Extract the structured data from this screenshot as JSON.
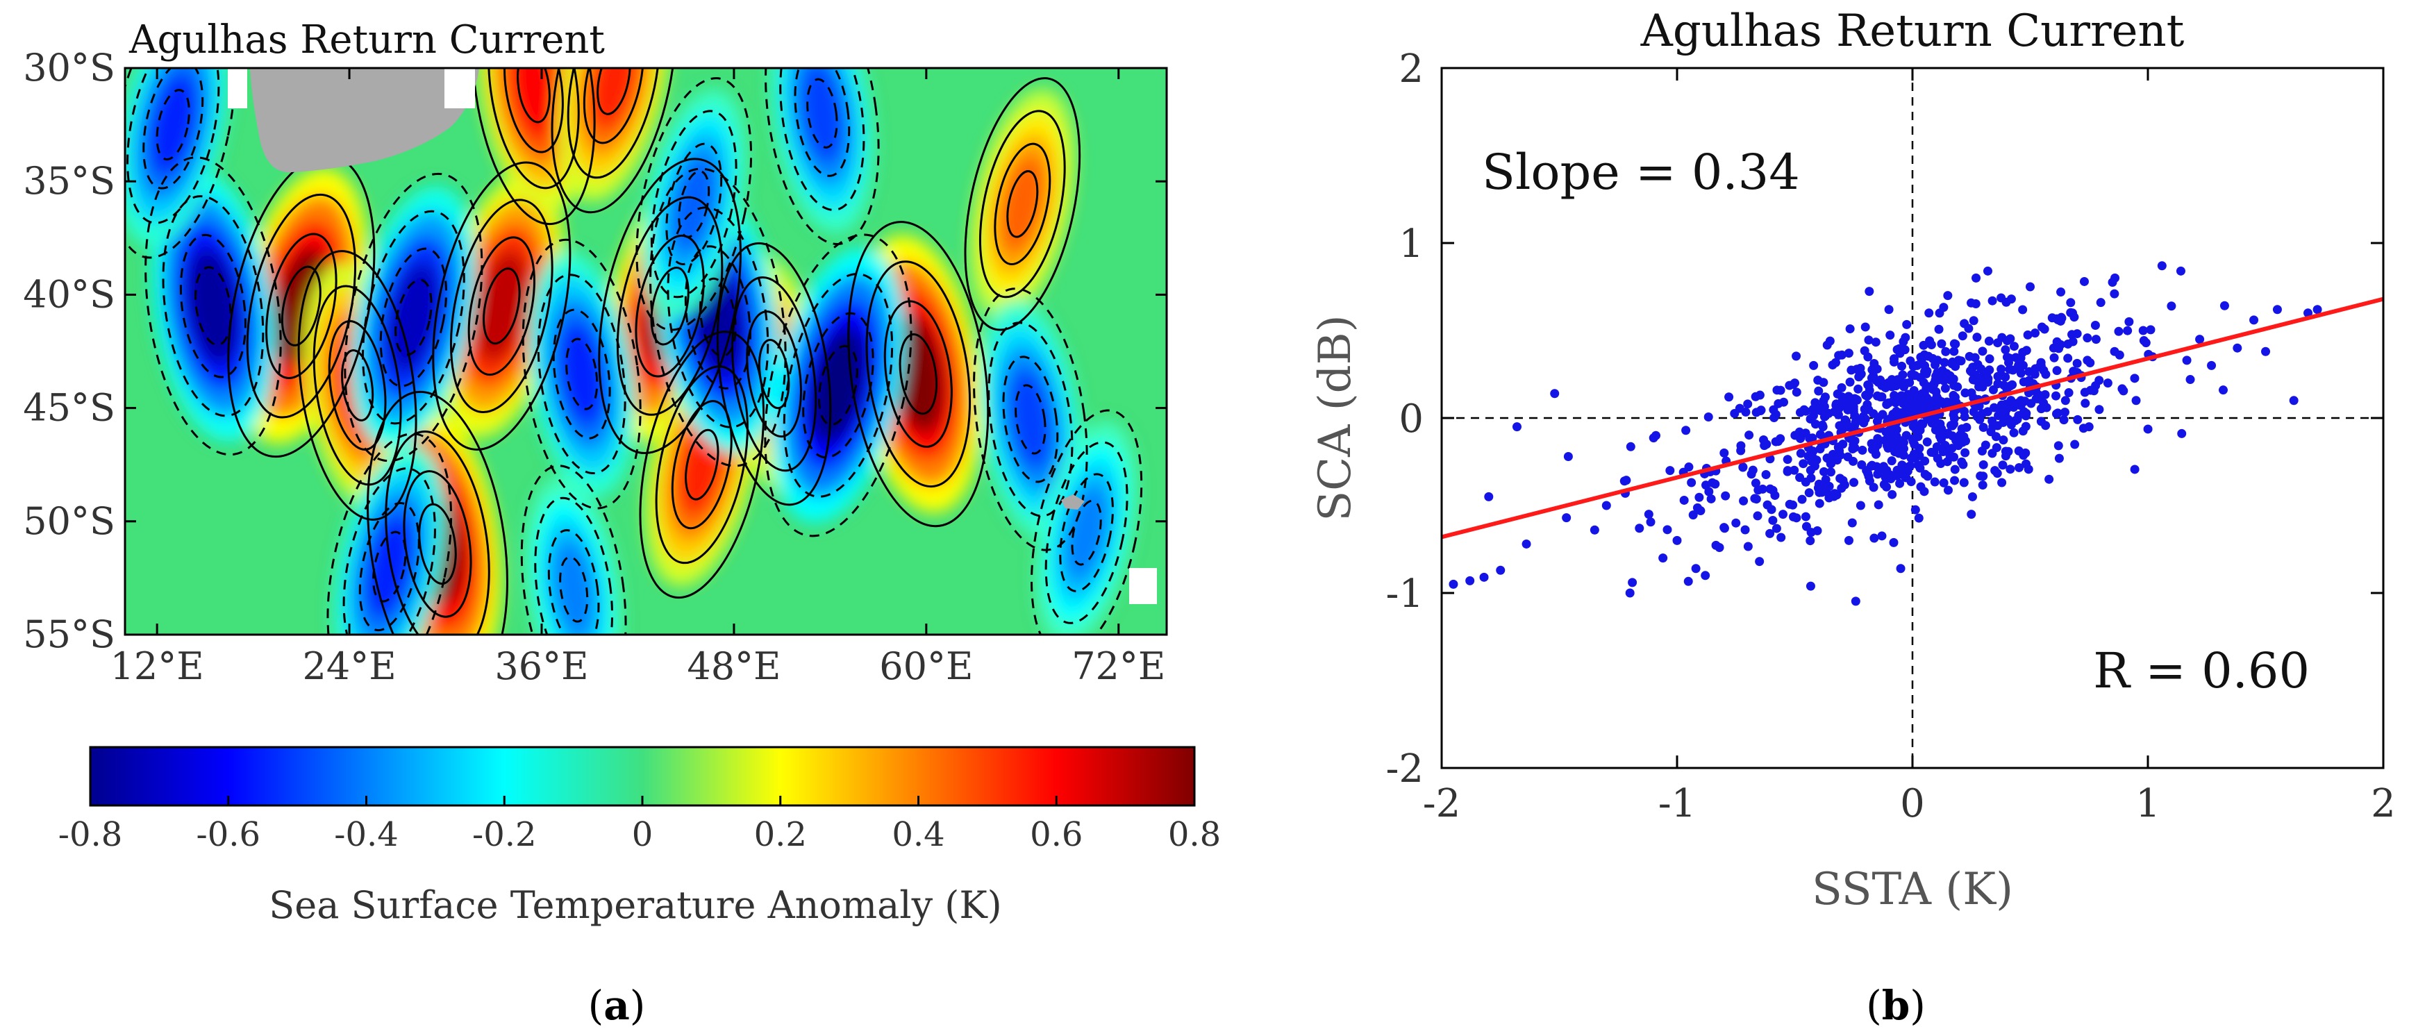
{
  "figure": {
    "panel_a_caption": "a",
    "panel_b_caption": "b"
  },
  "colors": {
    "scatter_points": "#1414e6",
    "fit_line": "#ff1a1a",
    "land": "#aaaaaa",
    "contour": "#000000"
  },
  "chart_data": [
    {
      "type": "heatmap",
      "title": "Agulhas Return Current",
      "xlabel": "",
      "ylabel": "",
      "x_ticks": [
        "12°E",
        "24°E",
        "36°E",
        "48°E",
        "60°E",
        "72°E"
      ],
      "y_ticks": [
        "30°S",
        "35°S",
        "40°S",
        "45°S",
        "50°S",
        "55°S"
      ],
      "xlim": [
        10,
        75
      ],
      "ylim": [
        -55,
        -30
      ],
      "colorbar": {
        "label": "Sea Surface Temperature Anomaly (K)",
        "range": [
          -0.8,
          0.8
        ],
        "ticks": [
          "-0.8",
          "-0.6",
          "-0.4",
          "-0.2",
          "0",
          "0.2",
          "0.4",
          "0.6",
          "0.8"
        ],
        "colormap": "jet"
      },
      "overlay": "SCA contours (solid = positive, dashed = negative)",
      "anomaly_features": [
        {
          "lon": 21,
          "lat": -40.5,
          "value": 0.8
        },
        {
          "lon": 24.5,
          "lat": -44,
          "value": 0.55
        },
        {
          "lon": 33.5,
          "lat": -40.5,
          "value": 0.7
        },
        {
          "lon": 29.5,
          "lat": -51,
          "value": 0.8
        },
        {
          "lon": 44,
          "lat": -40.5,
          "value": 0.75
        },
        {
          "lon": 59.5,
          "lat": -43.5,
          "value": 0.8
        },
        {
          "lon": 46,
          "lat": -47.5,
          "value": 0.55
        },
        {
          "lon": 50.5,
          "lat": -43.5,
          "value": 0.5
        },
        {
          "lon": 66,
          "lat": -36,
          "value": 0.45
        },
        {
          "lon": 35.5,
          "lat": -30.8,
          "value": 0.6
        },
        {
          "lon": 40.5,
          "lat": -30.5,
          "value": 0.55
        },
        {
          "lon": 15.5,
          "lat": -40.5,
          "value": -0.75
        },
        {
          "lon": 28,
          "lat": -41,
          "value": -0.7
        },
        {
          "lon": 47,
          "lat": -41,
          "value": -0.75
        },
        {
          "lon": 54.5,
          "lat": -44,
          "value": -0.8
        },
        {
          "lon": 38.5,
          "lat": -43.5,
          "value": -0.55
        },
        {
          "lon": 26.5,
          "lat": -52,
          "value": -0.55
        },
        {
          "lon": 66.5,
          "lat": -45.5,
          "value": -0.5
        },
        {
          "lon": 13,
          "lat": -32.5,
          "value": -0.55
        },
        {
          "lon": 53.5,
          "lat": -32,
          "value": -0.5
        },
        {
          "lon": 45.5,
          "lat": -36,
          "value": -0.45
        },
        {
          "lon": 38,
          "lat": -53,
          "value": -0.4
        },
        {
          "lon": 70,
          "lat": -50.5,
          "value": -0.4
        }
      ]
    },
    {
      "type": "scatter",
      "title": "Agulhas Return Current",
      "xlabel": "SSTA (K)",
      "ylabel": "SCA (dB)",
      "xlim": [
        -2,
        2
      ],
      "ylim": [
        -2,
        2
      ],
      "x_ticks": [
        "-2",
        "-1",
        "0",
        "1",
        "2"
      ],
      "y_ticks": [
        "2",
        "1",
        "0",
        "-1",
        "-2"
      ],
      "annotations": {
        "slope": "Slope = 0.34",
        "r": "R = 0.60"
      },
      "fit_line": {
        "slope": 0.34,
        "intercept": 0.0
      },
      "n_points": 900,
      "series": [
        {
          "name": "samples",
          "points": [
            [
              -1.95,
              -0.95
            ],
            [
              -1.88,
              -0.93
            ],
            [
              -1.82,
              -0.91
            ],
            [
              -1.8,
              -0.45
            ],
            [
              -1.75,
              -0.87
            ],
            [
              -1.68,
              -0.05
            ],
            [
              -1.64,
              -0.72
            ],
            [
              -1.52,
              0.14
            ],
            [
              -1.47,
              -0.57
            ],
            [
              -1.35,
              -0.64
            ],
            [
              -1.3,
              -0.5
            ],
            [
              -1.22,
              -0.43
            ],
            [
              -1.2,
              -1.0
            ],
            [
              -1.19,
              -0.94
            ],
            [
              -1.16,
              -0.63
            ],
            [
              -1.12,
              -0.55
            ],
            [
              -1.09,
              -0.1
            ],
            [
              -1.06,
              -0.8
            ],
            [
              -1.03,
              -0.3
            ],
            [
              -1.0,
              -0.7
            ],
            [
              -0.97,
              -0.47
            ],
            [
              -0.95,
              -0.28
            ],
            [
              -0.92,
              -0.86
            ],
            [
              -0.9,
              -0.53
            ],
            [
              -0.88,
              -0.9
            ],
            [
              -0.85,
              -0.37
            ],
            [
              -0.82,
              -0.74
            ],
            [
              -0.8,
              -0.2
            ],
            [
              -0.78,
              0.12
            ],
            [
              -0.75,
              -0.6
            ],
            [
              -0.72,
              -0.28
            ],
            [
              -0.7,
              0.08
            ],
            [
              -0.67,
              -0.46
            ],
            [
              -0.65,
              -0.82
            ],
            [
              -0.62,
              -0.15
            ],
            [
              -0.58,
              0.02
            ],
            [
              -0.55,
              -0.55
            ],
            [
              -0.53,
              -0.3
            ],
            [
              -0.5,
              0.2
            ],
            [
              -0.48,
              -0.08
            ],
            [
              -0.45,
              -0.62
            ],
            [
              -0.42,
              0.3
            ],
            [
              -0.4,
              -0.4
            ],
            [
              -0.38,
              -0.05
            ],
            [
              -0.35,
              0.44
            ],
            [
              -0.32,
              -0.24
            ],
            [
              -0.3,
              0.36
            ],
            [
              -0.27,
              -0.7
            ],
            [
              -0.25,
              0.05
            ],
            [
              -0.22,
              -0.5
            ],
            [
              -0.2,
              0.52
            ],
            [
              -0.17,
              -0.18
            ],
            [
              -0.15,
              0.28
            ],
            [
              -0.12,
              -0.38
            ],
            [
              -0.1,
              0.62
            ],
            [
              -0.08,
              0.1
            ],
            [
              -0.05,
              -0.86
            ],
            [
              -0.03,
              0.46
            ],
            [
              0.0,
              -0.12
            ],
            [
              0.02,
              0.3
            ],
            [
              0.05,
              -0.42
            ],
            [
              0.07,
              0.6
            ],
            [
              0.1,
              0.15
            ],
            [
              0.12,
              -0.26
            ],
            [
              0.15,
              0.7
            ],
            [
              0.17,
              0.32
            ],
            [
              0.2,
              -0.14
            ],
            [
              0.22,
              0.54
            ],
            [
              0.25,
              -0.55
            ],
            [
              0.27,
              0.8
            ],
            [
              0.3,
              0.22
            ],
            [
              0.32,
              0.84
            ],
            [
              0.35,
              -0.3
            ],
            [
              0.38,
              0.46
            ],
            [
              0.4,
              0.05
            ],
            [
              0.42,
              0.68
            ],
            [
              0.45,
              0.3
            ],
            [
              0.48,
              -0.2
            ],
            [
              0.5,
              0.75
            ],
            [
              0.52,
              0.25
            ],
            [
              0.55,
              0.52
            ],
            [
              0.58,
              -0.35
            ],
            [
              0.6,
              0.4
            ],
            [
              0.63,
              0.72
            ],
            [
              0.65,
              0.1
            ],
            [
              0.68,
              0.6
            ],
            [
              0.7,
              0.26
            ],
            [
              0.73,
              0.78
            ],
            [
              0.75,
              -0.05
            ],
            [
              0.78,
              0.45
            ],
            [
              0.8,
              0.66
            ],
            [
              0.83,
              0.2
            ],
            [
              0.86,
              0.8
            ],
            [
              0.88,
              0.36
            ],
            [
              0.92,
              0.55
            ],
            [
              0.95,
              0.1
            ],
            [
              0.98,
              0.5
            ],
            [
              1.02,
              0.35
            ],
            [
              1.06,
              0.87
            ],
            [
              1.1,
              0.64
            ],
            [
              1.14,
              0.84
            ],
            [
              1.18,
              0.22
            ],
            [
              1.22,
              0.45
            ],
            [
              1.27,
              0.3
            ],
            [
              1.32,
              0.16
            ],
            [
              1.38,
              0.4
            ],
            [
              1.45,
              0.56
            ],
            [
              1.5,
              0.38
            ],
            [
              1.55,
              0.62
            ],
            [
              1.62,
              0.1
            ],
            [
              1.68,
              0.6
            ],
            [
              1.72,
              0.62
            ]
          ]
        }
      ]
    }
  ]
}
